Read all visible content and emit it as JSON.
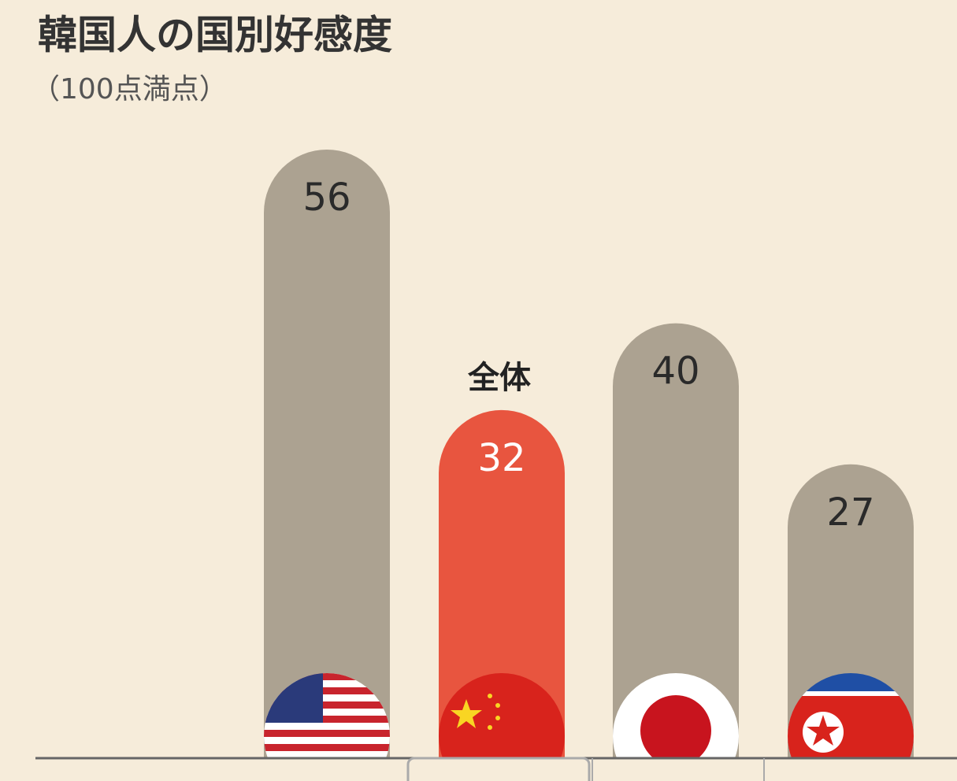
{
  "chart_data": {
    "type": "bar",
    "title": "韓国人の国別好感度",
    "subtitle": "（100点満点）",
    "categories": [
      null,
      null,
      null,
      null
    ],
    "values": [
      56,
      32,
      40,
      27
    ],
    "colors": [
      "#aca291",
      "#e8553f",
      "#aca291",
      "#aca291"
    ],
    "value_label_colors": [
      "#2a2a2a",
      "#ffffff",
      "#2a2a2a",
      "#2a2a2a"
    ],
    "annotation": "全体",
    "ylim": [
      0,
      70
    ]
  }
}
